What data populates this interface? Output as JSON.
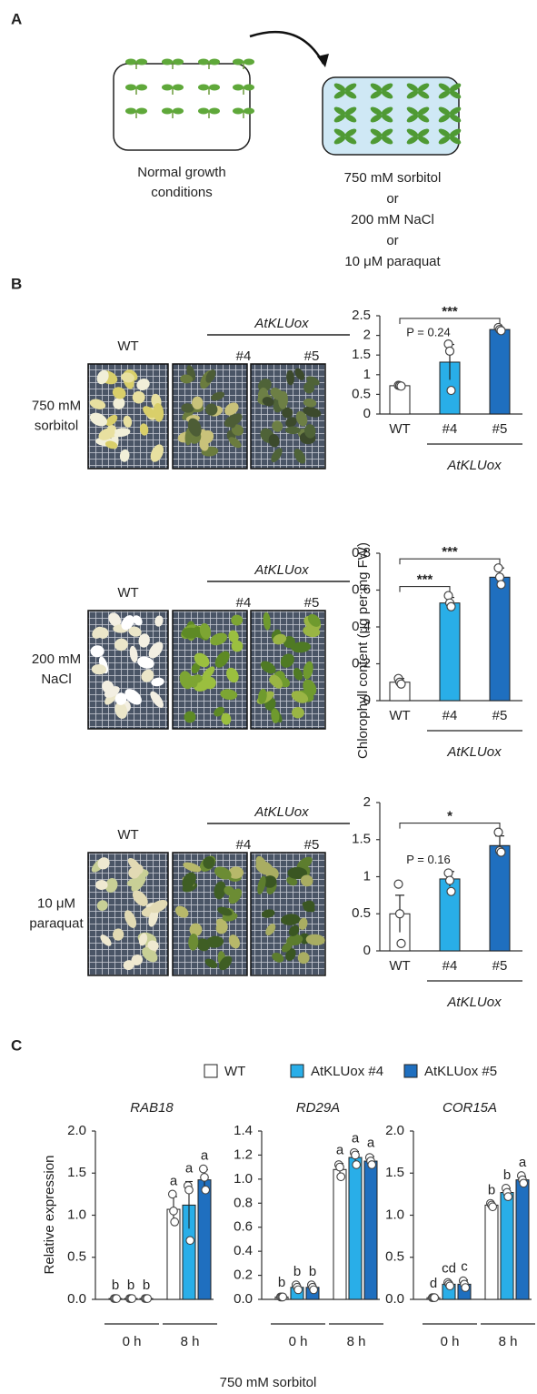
{
  "panel_a": {
    "label": "A",
    "left_caption": [
      "Normal growth",
      "conditions"
    ],
    "right_caption": [
      "750 mM sorbitol",
      "or",
      "200 mM NaCl",
      "or",
      "10 μM paraquat"
    ]
  },
  "panel_b": {
    "label": "B",
    "y_label": "Chlorophyll content (μg per mg  FW)",
    "rows": [
      {
        "condition": [
          "750 mM",
          "sorbitol"
        ],
        "columns": [
          "WT",
          "#4",
          "#5"
        ],
        "group": "AtKLUox"
      },
      {
        "condition": [
          "200 mM",
          "NaCl"
        ],
        "columns": [
          "WT",
          "#4",
          "#5"
        ],
        "group": "AtKLUox"
      },
      {
        "condition": [
          "10 μM",
          "paraquat"
        ],
        "columns": [
          "WT",
          "#4",
          "#5"
        ],
        "group": "AtKLUox"
      }
    ]
  },
  "chart_data": [
    {
      "type": "bar",
      "categories": [
        "WT",
        "#4",
        "#5"
      ],
      "group_label": "AtKLUox",
      "colors": [
        "#ffffff",
        "#29aee8",
        "#1f6fbf"
      ],
      "values": [
        0.72,
        1.32,
        2.15
      ],
      "errors": [
        0.02,
        0.45,
        0.05
      ],
      "points": [
        [
          0.73,
          0.72,
          0.71
        ],
        [
          1.78,
          1.6,
          0.6
        ],
        [
          2.2,
          2.15,
          2.12
        ]
      ],
      "ylim": [
        0,
        2.5
      ],
      "yticks": [
        0,
        0.5,
        1,
        1.5,
        2,
        2.5
      ],
      "annotations": [
        {
          "text": "***",
          "span": [
            0,
            2
          ],
          "bracket": true
        },
        {
          "text": "P = 0.24",
          "span": [
            0,
            1
          ],
          "bracket": false
        }
      ]
    },
    {
      "type": "bar",
      "categories": [
        "WT",
        "#4",
        "#5"
      ],
      "group_label": "AtKLUox",
      "colors": [
        "#ffffff",
        "#29aee8",
        "#1f6fbf"
      ],
      "values": [
        0.1,
        0.53,
        0.67
      ],
      "errors": [
        0.02,
        0.03,
        0.05
      ],
      "points": [
        [
          0.12,
          0.1,
          0.09
        ],
        [
          0.57,
          0.53,
          0.51
        ],
        [
          0.72,
          0.67,
          0.63
        ]
      ],
      "ylim": [
        0,
        0.8
      ],
      "yticks": [
        0,
        0.2,
        0.4,
        0.6,
        0.8
      ],
      "annotations": [
        {
          "text": "***",
          "span": [
            0,
            1
          ],
          "bracket": true
        },
        {
          "text": "***",
          "span": [
            0,
            2
          ],
          "bracket": true
        }
      ]
    },
    {
      "type": "bar",
      "categories": [
        "WT",
        "#4",
        "#5"
      ],
      "group_label": "AtKLUox",
      "colors": [
        "#ffffff",
        "#29aee8",
        "#1f6fbf"
      ],
      "values": [
        0.5,
        0.97,
        1.42
      ],
      "errors": [
        0.25,
        0.1,
        0.13
      ],
      "points": [
        [
          0.9,
          0.5,
          0.1
        ],
        [
          1.05,
          0.95,
          0.8
        ],
        [
          1.6,
          1.35,
          1.33
        ]
      ],
      "ylim": [
        0,
        2
      ],
      "yticks": [
        0,
        0.5,
        1,
        1.5,
        2
      ],
      "annotations": [
        {
          "text": "*",
          "span": [
            0,
            2
          ],
          "bracket": true
        },
        {
          "text": "P = 0.16",
          "span": [
            0,
            1
          ],
          "bracket": false
        }
      ]
    },
    {
      "type": "grouped-bar",
      "title": "RAB18",
      "groups": [
        "0 h",
        "8 h"
      ],
      "ylim": [
        0,
        2
      ],
      "yticks": [
        {
          "value": 0,
          "label": "0.0"
        },
        {
          "value": 0.5,
          "label": "0.5"
        },
        {
          "value": 1,
          "label": "1.0"
        },
        {
          "value": 1.5,
          "label": "1.5"
        },
        {
          "value": 2,
          "label": "2.0"
        }
      ],
      "series": [
        {
          "color": "#ffffff",
          "values": [
            0.01,
            1.07
          ],
          "errors": [
            0,
            0.15
          ],
          "points": [
            [
              0.01,
              0.01,
              0.01
            ],
            [
              1.25,
              1.05,
              0.92
            ]
          ],
          "letters": [
            "b",
            "a"
          ]
        },
        {
          "color": "#29aee8",
          "values": [
            0.01,
            1.12
          ],
          "errors": [
            0,
            0.28
          ],
          "points": [
            [
              0.01,
              0.01,
              0.01
            ],
            [
              1.35,
              1.3,
              0.7
            ]
          ],
          "letters": [
            "b",
            "a"
          ]
        },
        {
          "color": "#1f6fbf",
          "values": [
            0.01,
            1.42
          ],
          "errors": [
            0,
            0.12
          ],
          "points": [
            [
              0.01,
              0.01,
              0.01
            ],
            [
              1.55,
              1.45,
              1.3
            ]
          ],
          "letters": [
            "b",
            "a"
          ]
        }
      ]
    },
    {
      "type": "grouped-bar",
      "title": "RD29A",
      "groups": [
        "0 h",
        "8 h"
      ],
      "ylim": [
        0,
        1.4
      ],
      "yticks": [
        {
          "value": 0,
          "label": "0.0"
        },
        0.2,
        0.4,
        0.6,
        0.8,
        {
          "value": 1,
          "label": "1.0"
        },
        1.2,
        1.4
      ],
      "series": [
        {
          "color": "#ffffff",
          "values": [
            0.02,
            1.08
          ],
          "errors": [
            0.01,
            0.05
          ],
          "points": [
            [
              0.02,
              0.02,
              0.02
            ],
            [
              1.12,
              1.1,
              1.02
            ]
          ],
          "letters": [
            "b",
            "a"
          ]
        },
        {
          "color": "#29aee8",
          "values": [
            0.1,
            1.18
          ],
          "errors": [
            0.02,
            0.05
          ],
          "points": [
            [
              0.12,
              0.1,
              0.08
            ],
            [
              1.22,
              1.2,
              1.12
            ]
          ],
          "letters": [
            "b",
            "a"
          ]
        },
        {
          "color": "#1f6fbf",
          "values": [
            0.1,
            1.15
          ],
          "errors": [
            0.02,
            0.04
          ],
          "points": [
            [
              0.12,
              0.1,
              0.08
            ],
            [
              1.18,
              1.15,
              1.12
            ]
          ],
          "letters": [
            "b",
            "a"
          ]
        }
      ]
    },
    {
      "type": "grouped-bar",
      "title": "COR15A",
      "groups": [
        "0 h",
        "8 h"
      ],
      "ylim": [
        0,
        2
      ],
      "yticks": [
        {
          "value": 0,
          "label": "0.0"
        },
        {
          "value": 0.5,
          "label": "0.5"
        },
        {
          "value": 1,
          "label": "1.0"
        },
        {
          "value": 1.5,
          "label": "1.5"
        },
        {
          "value": 2,
          "label": "2.0"
        }
      ],
      "series": [
        {
          "color": "#ffffff",
          "values": [
            0.02,
            1.12
          ],
          "errors": [
            0.01,
            0.02
          ],
          "points": [
            [
              0.02,
              0.02,
              0.02
            ],
            [
              1.14,
              1.12,
              1.1
            ]
          ],
          "letters": [
            "d",
            "b"
          ]
        },
        {
          "color": "#29aee8",
          "values": [
            0.18,
            1.27
          ],
          "errors": [
            0.03,
            0.05
          ],
          "points": [
            [
              0.2,
              0.18,
              0.16
            ],
            [
              1.32,
              1.27,
              1.22
            ]
          ],
          "letters": [
            "cd",
            "b"
          ]
        },
        {
          "color": "#1f6fbf",
          "values": [
            0.18,
            1.42
          ],
          "errors": [
            0.05,
            0.04
          ],
          "points": [
            [
              0.22,
              0.18,
              0.14
            ],
            [
              1.47,
              1.42,
              1.38
            ]
          ],
          "letters": [
            "c",
            "a"
          ]
        }
      ]
    }
  ],
  "panel_c": {
    "label": "C",
    "x_label": "750 mM sorbitol",
    "y_label": "Relative expression",
    "legend": [
      {
        "name": "WT",
        "color": "#ffffff"
      },
      {
        "name": "AtKLUox #4",
        "color": "#29aee8"
      },
      {
        "name": "AtKLUox #5",
        "color": "#1f6fbf"
      }
    ]
  }
}
